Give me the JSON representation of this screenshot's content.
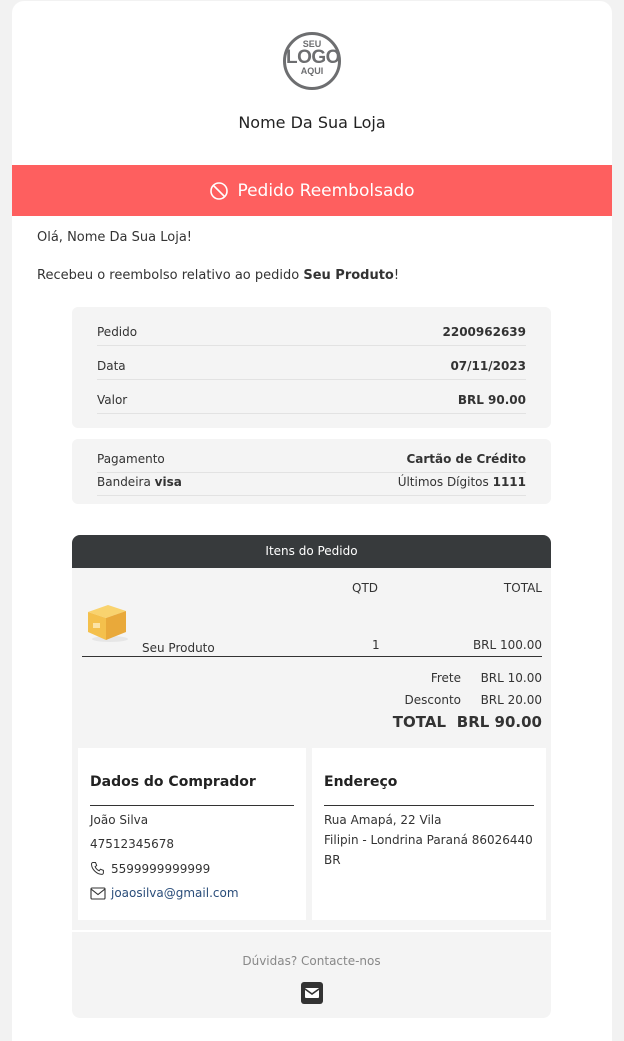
{
  "header": {
    "logo_top": "SEU",
    "logo_mid": "LOGO",
    "logo_bottom": "AQUI",
    "store_name": "Nome Da Sua Loja"
  },
  "banner": {
    "icon": "ban-icon",
    "text": "Pedido Reembolsado",
    "color": "#fe5f5f"
  },
  "greeting": "Olá, Nome Da Sua Loja!",
  "message": {
    "prefix": "Recebeu o reembolso relativo ao pedido ",
    "product": "Seu Produto",
    "suffix": "!"
  },
  "order": [
    {
      "label": "Pedido",
      "value": "2200962639"
    },
    {
      "label": "Data",
      "value": "07/11/2023"
    },
    {
      "label": "Valor",
      "value": "BRL 90.00"
    }
  ],
  "payment": {
    "label": "Pagamento",
    "value": "Cartão de Crédito",
    "brand_label": "Bandeira ",
    "brand": "visa",
    "digits_label": "Últimos Dígitos ",
    "digits": "1111"
  },
  "items": {
    "title": "Itens do Pedido",
    "col_qty": "QTD",
    "col_total": "TOTAL",
    "rows": [
      {
        "name": "Seu Produto",
        "qty": "1",
        "total": "BRL 100.00",
        "icon": "box-icon"
      }
    ],
    "shipping_label": "Frete",
    "shipping": "BRL 10.00",
    "discount_label": "Desconto",
    "discount": "BRL 20.00",
    "total_label": "TOTAL",
    "total": "BRL 90.00"
  },
  "buyer": {
    "title": "Dados do Comprador",
    "name": "João Silva",
    "doc": "47512345678",
    "phone": "5599999999999",
    "email": "joaosilva@gmail.com"
  },
  "address": {
    "title": "Endereço",
    "line1": "Rua Amapá, 22 Vila",
    "line2": "Filipin - Londrina Paraná 86026440",
    "line3": "BR"
  },
  "footer": {
    "text": "Dúvidas? Contacte-nos",
    "icon": "envelope-icon"
  }
}
